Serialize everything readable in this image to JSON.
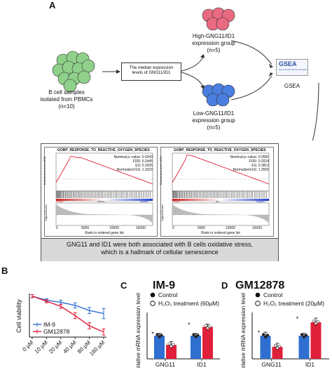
{
  "panels": {
    "A": {
      "letter": "A",
      "b_cells": "B cell samples\nisolated from PBMCs\n(n=10)",
      "median_box": "The median expression\nlevels of GNG11/ID1",
      "high_group": "High-GNG11/ID1\nexpression group\n(n=5)",
      "low_group": "Low-GNG11/ID1\nexpression group\n(n=5)",
      "gsea_logo": "GSEA",
      "gsea_logo_sub": "Gene Set Enrichment Analysis",
      "gsea_label": "GSEA",
      "colors": {
        "green": "#8fd08a",
        "red": "#ea6a82",
        "blue": "#4a7ee0"
      },
      "plots": [
        {
          "title": "GOBP_RESPONSE_TO_REACTIVE_OXYGEN_SPECIES",
          "stats": [
            "Nominal p−value: 0.0243",
            "FDR: 0.2445",
            "ES: 0.3205",
            "Normalized ES: 1.3316"
          ],
          "ylabel_top": "Enrichment score (ES)",
          "ylabel_bottom": "Signal2Noise",
          "xlabel": "Rank in ordered gene list",
          "xticks": [
            "0",
            "5000",
            "10000",
            "15000"
          ],
          "positive": "Positive",
          "gene": "GNG11",
          "negative": "Negative"
        },
        {
          "title": "GOBP_RESPONSE_TO_REACTIVE_OXYGEN_SPECIES",
          "stats": [
            "Nominal p−value: 0.0581",
            "FDR: 0.2024",
            "ES: 0.3812",
            "Normalized ES: 1.3555"
          ],
          "ylabel_top": "Enrichment score (ES)",
          "ylabel_bottom": "Signal2Noise",
          "xlabel": "Rank in ordered gene list",
          "xticks": [
            "0",
            "5000",
            "10000",
            "15000"
          ],
          "positive": "Positive",
          "gene": "ID1",
          "negative": "Negative"
        }
      ],
      "caption": "GNG11 and ID1 were both associated with B cells oxidative stress,\nwhich is a hallmark of cellular senescence"
    },
    "B": {
      "letter": "B"
    },
    "C": {
      "letter": "C",
      "title": "IM-9"
    },
    "D": {
      "letter": "D",
      "title": "GM12878"
    }
  },
  "chart_data": [
    {
      "type": "line",
      "ylabel": "Cell viability",
      "categories": [
        "0 μM",
        "10 μM",
        "20 μM",
        "40 μM",
        "80 μM",
        "160 μM"
      ],
      "legend_placement": "bottom-left",
      "series": [
        {
          "name": "IM-9",
          "color": "#2f6fd0",
          "values": [
            1.0,
            0.92,
            0.88,
            0.82,
            0.72,
            0.66
          ],
          "err": [
            0.03,
            0.03,
            0.04,
            0.05,
            0.06,
            0.1
          ]
        },
        {
          "name": "GM12878",
          "color": "#e0203a",
          "values": [
            1.0,
            0.9,
            0.8,
            0.62,
            0.42,
            0.3
          ],
          "err": [
            0.03,
            0.03,
            0.04,
            0.06,
            0.06,
            0.06
          ]
        }
      ]
    },
    {
      "type": "bar",
      "title": "IM-9",
      "ylabel": "Relative mRNA expression level",
      "categories": [
        "GNG11",
        "ID1"
      ],
      "ylim": [
        0,
        2.0
      ],
      "legend": [
        "Control",
        "H₂O₂ treatment (60μM)"
      ],
      "series": [
        {
          "name": "Control",
          "color": "#2f6fd0",
          "values": [
            1.0,
            1.0
          ],
          "err": [
            0.1,
            0.1
          ]
        },
        {
          "name": "H₂O₂ treatment (60μM)",
          "color": "#e0203a",
          "values": [
            0.6,
            1.38
          ],
          "err": [
            0.15,
            0.12
          ]
        }
      ],
      "significance": [
        "*",
        "*"
      ]
    },
    {
      "type": "bar",
      "title": "GM12878",
      "ylabel": "Relative mRNA expression level",
      "categories": [
        "GNG11",
        "ID1"
      ],
      "ylim": [
        0,
        2.0
      ],
      "legend": [
        "Control",
        "H₂O₂ treatment (20μM)"
      ],
      "series": [
        {
          "name": "Control",
          "color": "#2f6fd0",
          "values": [
            1.0,
            1.0
          ],
          "err": [
            0.15,
            0.1
          ]
        },
        {
          "name": "H₂O₂ treatment (20μM)",
          "color": "#e0203a",
          "values": [
            0.52,
            1.58
          ],
          "err": [
            0.15,
            0.18
          ]
        }
      ],
      "significance": [
        "*",
        "*"
      ]
    }
  ]
}
